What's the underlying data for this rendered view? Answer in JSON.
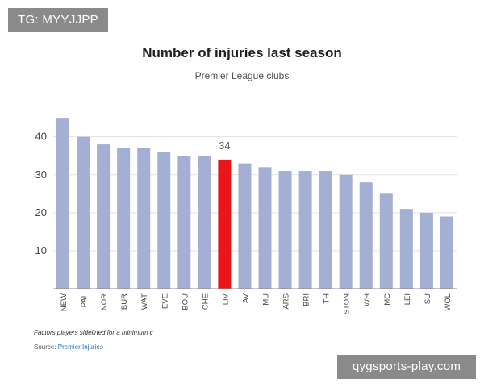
{
  "tag": "TG: MYYJJPP",
  "watermark": "qygsports-play.com",
  "footnote": "Factors players sidelined for a minimum c",
  "source": {
    "prefix": "Source: ",
    "link": "Premier Injuries"
  },
  "colors": {
    "bar": "#a4b0d3",
    "highlight": "#e8151b",
    "grid": "#e2e2e2",
    "axis": "#8a8a8a",
    "tick": "#444444"
  },
  "chart_data": {
    "type": "bar",
    "title": "Number of injuries last season",
    "subtitle": "Premier League clubs",
    "xlabel": "",
    "ylabel": "",
    "ylim": [
      0,
      48
    ],
    "yticks": [
      10,
      20,
      30,
      40
    ],
    "grid": true,
    "categories": [
      "NEW",
      "PAL",
      "NOR",
      "BUR",
      "WAT",
      "EVE",
      "BOU",
      "CHE",
      "LIV",
      "AV",
      "MU",
      "ARS",
      "BRI",
      "TH",
      "STON",
      "WH",
      "MC",
      "LEI",
      "SU",
      "WOL"
    ],
    "values": [
      45,
      40,
      38,
      37,
      37,
      36,
      35,
      35,
      34,
      33,
      32,
      31,
      31,
      31,
      30,
      28,
      25,
      21,
      20,
      19
    ],
    "highlight": {
      "category": "LIV",
      "label": "34"
    }
  }
}
